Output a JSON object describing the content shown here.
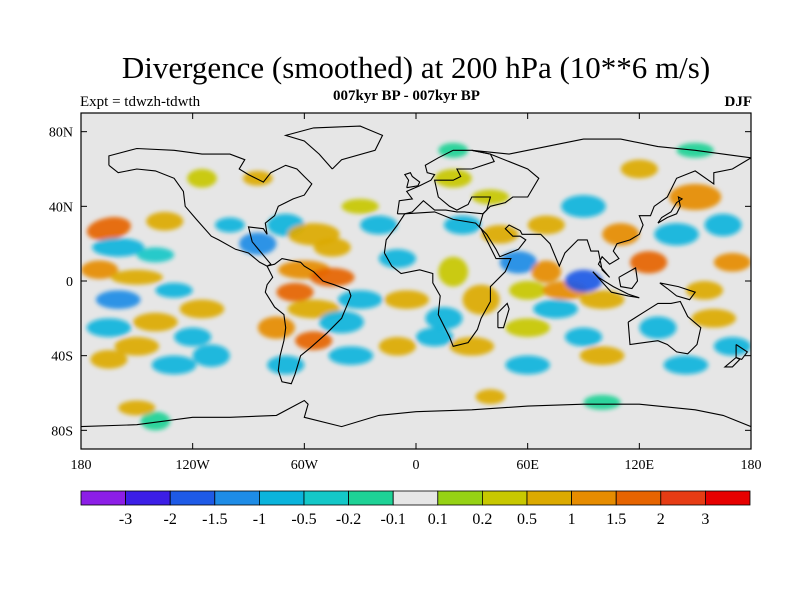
{
  "title": "Divergence (smoothed) at 200 hPa (10**6 m/s)",
  "subtitle": "007kyr BP - 007kyr BP",
  "left_label": "Expt = tdwzh-tdwth",
  "right_label": "DJF",
  "map": {
    "lon_range": [
      -180,
      180
    ],
    "lat_range": [
      -90,
      90
    ],
    "x_ticks": [
      {
        "value": -180,
        "label": "180"
      },
      {
        "value": -120,
        "label": "120W"
      },
      {
        "value": -60,
        "label": "60W"
      },
      {
        "value": 0,
        "label": "0"
      },
      {
        "value": 60,
        "label": "60E"
      },
      {
        "value": 120,
        "label": "120E"
      },
      {
        "value": 180,
        "label": "180"
      }
    ],
    "y_ticks": [
      {
        "value": 80,
        "label": "80N"
      },
      {
        "value": 40,
        "label": "40N"
      },
      {
        "value": 0,
        "label": "0"
      },
      {
        "value": -40,
        "label": "40S"
      },
      {
        "value": -80,
        "label": "80S"
      }
    ],
    "background_color": "#e6e6e6",
    "coastline_color": "#000000"
  },
  "colorbar": {
    "colors": [
      "#8c1ee6",
      "#3c1ee6",
      "#1e5ae6",
      "#1e8ce6",
      "#0ab4dc",
      "#14c8c8",
      "#1ed296",
      "#e6e6e6",
      "#96d214",
      "#c8c800",
      "#dcaa00",
      "#e68c00",
      "#e66400",
      "#e63c14",
      "#e60000"
    ],
    "levels": [
      "-3",
      "-2",
      "-1.5",
      "-1",
      "-0.5",
      "-0.2",
      "-0.1",
      "0.1",
      "0.2",
      "0.5",
      "1",
      "1.5",
      "2",
      "3"
    ]
  }
}
